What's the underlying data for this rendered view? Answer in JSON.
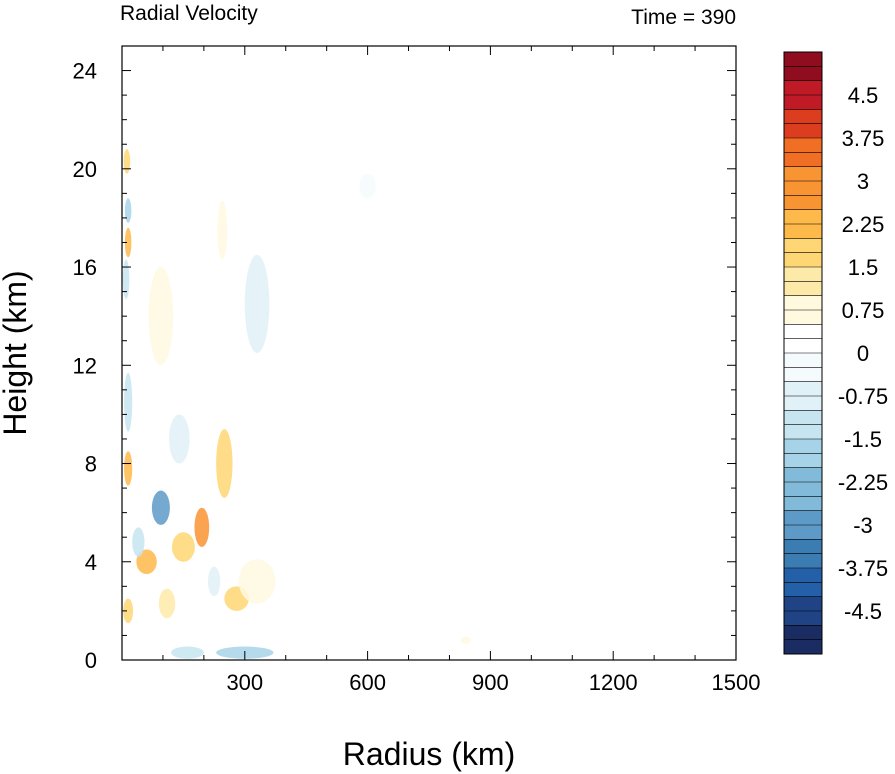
{
  "chart_data": {
    "type": "heatmap",
    "title_left": "Radial Velocity",
    "title_right": "Time = 390",
    "xlabel": "Radius (km)",
    "ylabel": "Height (km)",
    "xlim": [
      0,
      1500
    ],
    "ylim": [
      0,
      25
    ],
    "x_ticks": [
      300,
      600,
      900,
      1200,
      1500
    ],
    "y_ticks": [
      0,
      4,
      8,
      12,
      16,
      20,
      24
    ],
    "colorbar": {
      "min": -5.25,
      "max": 5.25,
      "step": 0.25,
      "labels": [
        "4.5",
        "3.75",
        "3",
        "2.25",
        "1.5",
        "0.75",
        "0",
        "-0.75",
        "-1.5",
        "-2.25",
        "-3",
        "-3.75",
        "-4.5"
      ],
      "palette": [
        "#1b2c62",
        "#204385",
        "#2460a7",
        "#3b7cb2",
        "#5d9ac7",
        "#82bad9",
        "#a7d3e8",
        "#c7e5f1",
        "#e1f1f8",
        "#f5fbfd",
        "#ffffff",
        "#fff9e0",
        "#feeaa8",
        "#fed673",
        "#fdb94a",
        "#f99432",
        "#f16f24",
        "#dd3d1f",
        "#c01a27",
        "#8f0d1f"
      ]
    },
    "features": [
      {
        "r": 95,
        "z": 6.2,
        "sr": 22,
        "sz": 0.7,
        "v": -2.8
      },
      {
        "r": 60,
        "z": 4.0,
        "sr": 25,
        "sz": 0.5,
        "v": 2.4
      },
      {
        "r": 150,
        "z": 4.6,
        "sr": 28,
        "sz": 0.6,
        "v": 1.8
      },
      {
        "r": 195,
        "z": 5.4,
        "sr": 18,
        "sz": 0.8,
        "v": 2.8
      },
      {
        "r": 15,
        "z": 7.8,
        "sr": 10,
        "sz": 0.7,
        "v": 2.5
      },
      {
        "r": 15,
        "z": 17.0,
        "sr": 8,
        "sz": 0.6,
        "v": 2.5
      },
      {
        "r": 12,
        "z": 20.3,
        "sr": 8,
        "sz": 0.5,
        "v": 2.0
      },
      {
        "r": 15,
        "z": 18.3,
        "sr": 8,
        "sz": 0.5,
        "v": -1.8
      },
      {
        "r": 10,
        "z": 15.5,
        "sr": 8,
        "sz": 0.8,
        "v": -1.2
      },
      {
        "r": 15,
        "z": 10.5,
        "sr": 10,
        "sz": 1.2,
        "v": -1.2
      },
      {
        "r": 15,
        "z": 2.0,
        "sr": 12,
        "sz": 0.5,
        "v": 2.0
      },
      {
        "r": 40,
        "z": 4.8,
        "sr": 15,
        "sz": 0.6,
        "v": -1.5
      },
      {
        "r": 280,
        "z": 2.5,
        "sr": 30,
        "sz": 0.5,
        "v": 1.8
      },
      {
        "r": 330,
        "z": 3.2,
        "sr": 45,
        "sz": 0.9,
        "v": 0.9
      },
      {
        "r": 300,
        "z": 0.3,
        "sr": 70,
        "sz": 0.25,
        "v": -1.8
      },
      {
        "r": 160,
        "z": 0.3,
        "sr": 40,
        "sz": 0.25,
        "v": -1.5
      },
      {
        "r": 250,
        "z": 8.0,
        "sr": 20,
        "sz": 1.4,
        "v": 1.8
      },
      {
        "r": 330,
        "z": 14.5,
        "sr": 30,
        "sz": 2.0,
        "v": -0.8
      },
      {
        "r": 245,
        "z": 17.5,
        "sr": 12,
        "sz": 1.2,
        "v": 0.8
      },
      {
        "r": 195,
        "z": 12.0,
        "sr": 40,
        "sz": 2.0,
        "v": 0.5
      },
      {
        "r": 140,
        "z": 9.0,
        "sr": 25,
        "sz": 1.0,
        "v": -0.6
      },
      {
        "r": 95,
        "z": 14.0,
        "sr": 30,
        "sz": 2.0,
        "v": 0.6
      },
      {
        "r": 110,
        "z": 2.3,
        "sr": 20,
        "sz": 0.6,
        "v": 1.2
      },
      {
        "r": 225,
        "z": 3.2,
        "sr": 15,
        "sz": 0.6,
        "v": -0.9
      },
      {
        "r": 840,
        "z": 0.8,
        "sr": 12,
        "sz": 0.15,
        "v": 0.9
      },
      {
        "r": 550,
        "z": 16.0,
        "sr": 15,
        "sz": 1.0,
        "v": 0.5
      },
      {
        "r": 600,
        "z": 19.3,
        "sr": 20,
        "sz": 0.5,
        "v": -0.5
      }
    ]
  }
}
